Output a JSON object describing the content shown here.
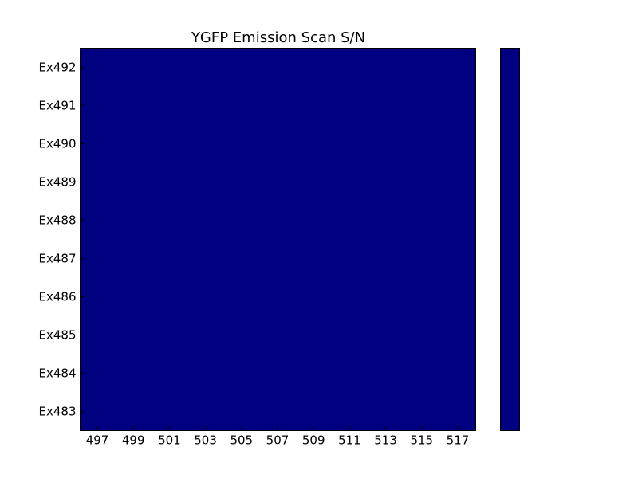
{
  "chart_data": {
    "type": "heatmap",
    "title": "YGFP Emission Scan S/N",
    "x_ticks": [
      "497",
      "499",
      "501",
      "503",
      "505",
      "507",
      "509",
      "511",
      "513",
      "515",
      "517"
    ],
    "y_categories": [
      "Ex483",
      "Ex484",
      "Ex485",
      "Ex486",
      "Ex487",
      "Ex488",
      "Ex489",
      "Ex490",
      "Ex491",
      "Ex492"
    ],
    "cell_color": "#000080",
    "colorbar": {
      "colors": [
        "#000080"
      ],
      "tick_labels": []
    },
    "grid": false,
    "legend": "none"
  },
  "colors": {
    "background": "#ffffff",
    "frame": "#000000",
    "cell": "#000080"
  }
}
